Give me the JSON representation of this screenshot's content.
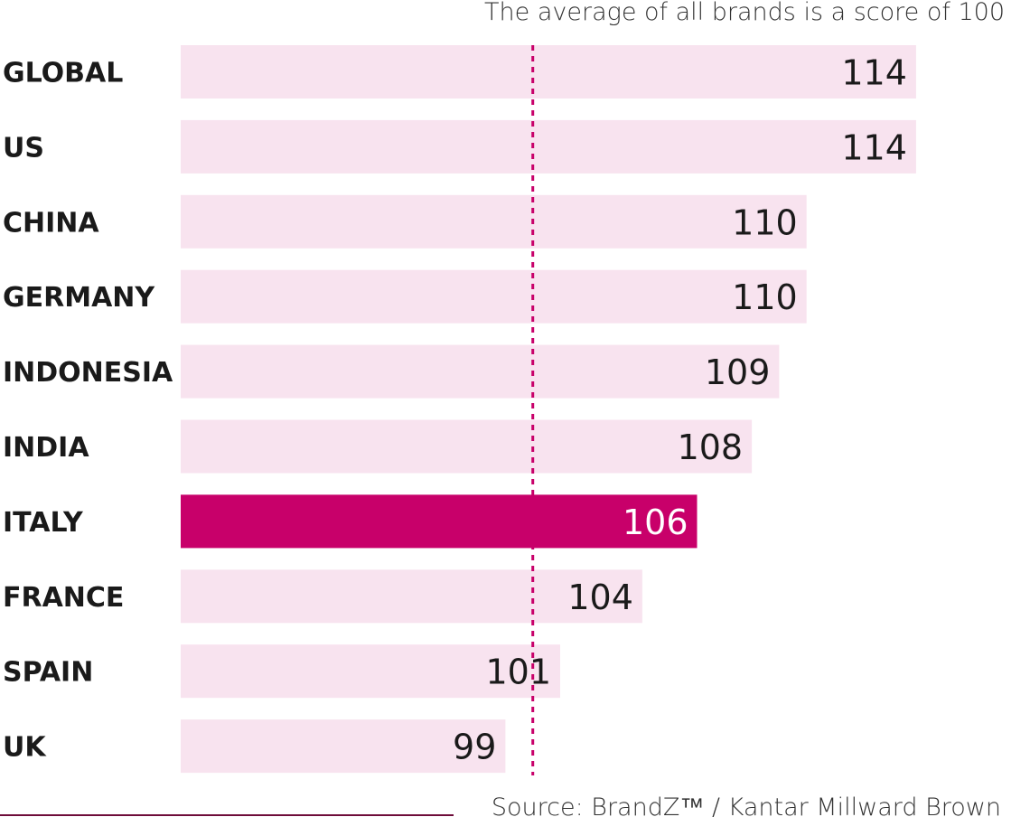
{
  "chart_data": {
    "type": "bar",
    "orientation": "horizontal",
    "categories": [
      "GLOBAL",
      "US",
      "CHINA",
      "GERMANY",
      "INDONESIA",
      "INDIA",
      "ITALY",
      "FRANCE",
      "SPAIN",
      "UK"
    ],
    "values": [
      114,
      114,
      110,
      110,
      109,
      108,
      106,
      104,
      101,
      99
    ],
    "highlight": "ITALY",
    "reference_line": 100,
    "annotation": "The average of all brands is a score of 100",
    "source": "Source: BrandZ™ / Kantar Millward Brown",
    "title": "",
    "xlabel": "",
    "ylabel": ""
  },
  "colors": {
    "bar": "#f8e3ef",
    "bar_highlight": "#c8006a",
    "reference_line": "#c8006a",
    "text": "#1a1a1a",
    "text_highlight": "#ffffff",
    "source_rule": "#6e0c3a"
  }
}
